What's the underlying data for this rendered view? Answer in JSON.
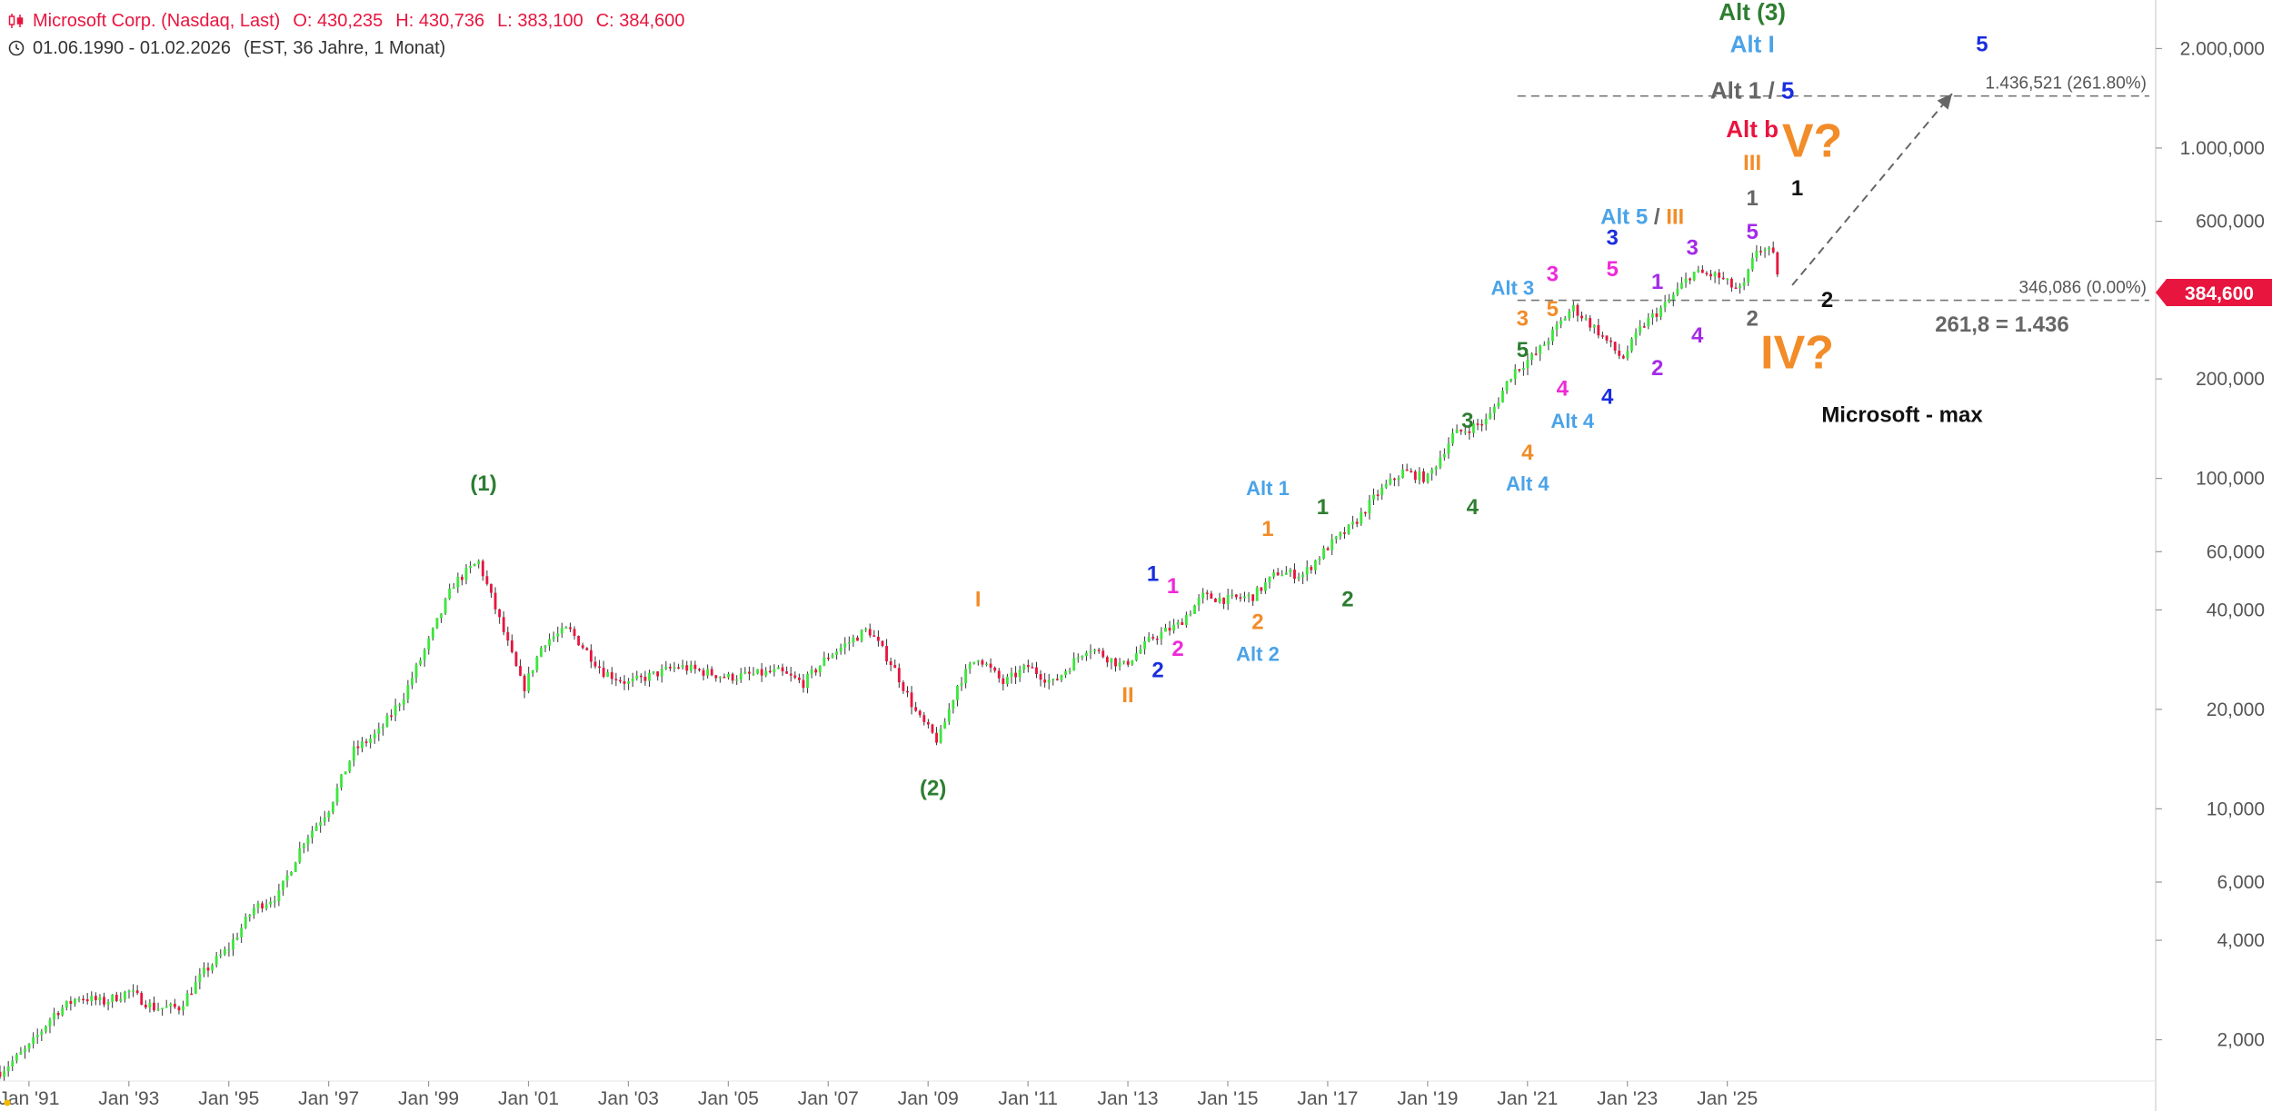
{
  "header": {
    "title": "Microsoft Corp. (Nasdaq, Last)",
    "open": "O: 430,235",
    "high": "H: 430,736",
    "low": "L: 383,100",
    "close": "C: 384,600",
    "range": "01.06.1990 - 01.02.2026",
    "range_detail": "(EST, 36 Jahre, 1 Monat)"
  },
  "price_tag": "384,600",
  "colors": {
    "up": "#3ee63e",
    "down": "#e8153f",
    "green": "#2e7d32",
    "blue": "#1a2ee0",
    "lightblue": "#4aa3e8",
    "orange": "#f28c28",
    "magenta": "#ee2ad8",
    "purple": "#a52ae8",
    "black": "#111111",
    "gray": "#666666",
    "red": "#e8153f"
  },
  "chart_data": {
    "type": "candlestick",
    "scale": "log",
    "ylim": [
      1500,
      2600000
    ],
    "xlim": [
      1990.42,
      2026.08
    ],
    "x_ticks": [
      "Jan '91",
      "Jan '93",
      "Jan '95",
      "Jan '97",
      "Jan '99",
      "Jan '01",
      "Jan '03",
      "Jan '05",
      "Jan '07",
      "Jan '09",
      "Jan '11",
      "Jan '13",
      "Jan '15",
      "Jan '17",
      "Jan '19",
      "Jan '21",
      "Jan '23",
      "Jan '25"
    ],
    "x_tick_years": [
      1991,
      1993,
      1995,
      1997,
      1999,
      2001,
      2003,
      2005,
      2007,
      2009,
      2011,
      2013,
      2015,
      2017,
      2019,
      2021,
      2023,
      2025
    ],
    "y_ticks": [
      {
        "v": 2000,
        "label": "2,000"
      },
      {
        "v": 4000,
        "label": "4,000"
      },
      {
        "v": 6000,
        "label": "6,000"
      },
      {
        "v": 10000,
        "label": "10,000"
      },
      {
        "v": 20000,
        "label": "20,000"
      },
      {
        "v": 40000,
        "label": "40,000"
      },
      {
        "v": 60000,
        "label": "60,000"
      },
      {
        "v": 100000,
        "label": "100,000"
      },
      {
        "v": 200000,
        "label": "200,000"
      },
      {
        "v": 600000,
        "label": "600,000"
      },
      {
        "v": 1000000,
        "label": "1.000,000"
      },
      {
        "v": 2000000,
        "label": "2.000,000"
      }
    ],
    "path": [
      [
        1990.42,
        1600
      ],
      [
        1991.0,
        1900
      ],
      [
        1991.5,
        2400
      ],
      [
        1992.0,
        2700
      ],
      [
        1992.5,
        2600
      ],
      [
        1993.0,
        2800
      ],
      [
        1993.5,
        2500
      ],
      [
        1994.0,
        2500
      ],
      [
        1994.5,
        3200
      ],
      [
        1995.0,
        3800
      ],
      [
        1995.5,
        5000
      ],
      [
        1996.0,
        5500
      ],
      [
        1996.5,
        8000
      ],
      [
        1997.0,
        10000
      ],
      [
        1997.5,
        15000
      ],
      [
        1998.0,
        17000
      ],
      [
        1998.5,
        22000
      ],
      [
        1999.0,
        32000
      ],
      [
        1999.5,
        48000
      ],
      [
        2000.0,
        56000
      ],
      [
        2000.4,
        38000
      ],
      [
        2000.9,
        23000
      ],
      [
        2001.3,
        32000
      ],
      [
        2001.8,
        35000
      ],
      [
        2002.5,
        26000
      ],
      [
        2003.0,
        24000
      ],
      [
        2004.0,
        27000
      ],
      [
        2005.0,
        25000
      ],
      [
        2006.0,
        26000
      ],
      [
        2006.5,
        24000
      ],
      [
        2007.0,
        29000
      ],
      [
        2007.8,
        35000
      ],
      [
        2008.3,
        27000
      ],
      [
        2008.8,
        19000
      ],
      [
        2009.2,
        16000
      ],
      [
        2009.6,
        24000
      ],
      [
        2010.0,
        29000
      ],
      [
        2010.5,
        24000
      ],
      [
        2011.0,
        27000
      ],
      [
        2011.5,
        24000
      ],
      [
        2012.2,
        31000
      ],
      [
        2012.9,
        27000
      ],
      [
        2013.5,
        33000
      ],
      [
        2014.0,
        36000
      ],
      [
        2014.5,
        44000
      ],
      [
        2015.0,
        43000
      ],
      [
        2015.5,
        44000
      ],
      [
        2016.0,
        52000
      ],
      [
        2016.5,
        51000
      ],
      [
        2017.0,
        62000
      ],
      [
        2017.5,
        72000
      ],
      [
        2018.0,
        90000
      ],
      [
        2018.5,
        105000
      ],
      [
        2019.0,
        100000
      ],
      [
        2019.5,
        135000
      ],
      [
        2020.2,
        150000
      ],
      [
        2020.7,
        210000
      ],
      [
        2021.2,
        240000
      ],
      [
        2021.9,
        330000
      ],
      [
        2022.4,
        280000
      ],
      [
        2022.9,
        230000
      ],
      [
        2023.3,
        290000
      ],
      [
        2023.8,
        340000
      ],
      [
        2024.3,
        420000
      ],
      [
        2024.8,
        410000
      ],
      [
        2025.1,
        380000
      ],
      [
        2025.3,
        370000
      ],
      [
        2025.6,
        500000
      ],
      [
        2025.9,
        480000
      ],
      [
        2026.08,
        384600
      ]
    ],
    "ref_lines": [
      {
        "value": 1436521,
        "label": "1.436,521 (261.80%)"
      },
      {
        "value": 346086,
        "label": "346,086 (0.00%)"
      }
    ],
    "annotations": [
      {
        "text": "(1)",
        "x": 2000.1,
        "y": 92000,
        "color": "green",
        "size": 24
      },
      {
        "text": "(2)",
        "x": 2009.1,
        "y": 11000,
        "color": "green",
        "size": 24
      },
      {
        "text": "I",
        "x": 2010.0,
        "y": 41000,
        "color": "orange",
        "size": 24
      },
      {
        "text": "II",
        "x": 2013.0,
        "y": 21000,
        "color": "orange",
        "size": 24
      },
      {
        "text": "1",
        "x": 2013.5,
        "y": 49000,
        "color": "blue",
        "size": 24
      },
      {
        "text": "2",
        "x": 2013.6,
        "y": 25000,
        "color": "blue",
        "size": 24
      },
      {
        "text": "1",
        "x": 2013.9,
        "y": 45000,
        "color": "magenta",
        "size": 24
      },
      {
        "text": "2",
        "x": 2014.0,
        "y": 29000,
        "color": "magenta",
        "size": 24
      },
      {
        "text": "Alt 1",
        "x": 2015.8,
        "y": 89000,
        "color": "lightblue",
        "size": 22
      },
      {
        "text": "1",
        "x": 2015.8,
        "y": 67000,
        "color": "orange",
        "size": 24
      },
      {
        "text": "2",
        "x": 2015.6,
        "y": 35000,
        "color": "orange",
        "size": 24
      },
      {
        "text": "Alt 2",
        "x": 2015.6,
        "y": 28000,
        "color": "lightblue",
        "size": 22
      },
      {
        "text": "1",
        "x": 2016.9,
        "y": 78000,
        "color": "green",
        "size": 24
      },
      {
        "text": "2",
        "x": 2017.4,
        "y": 41000,
        "color": "green",
        "size": 24
      },
      {
        "text": "3",
        "x": 2019.8,
        "y": 142000,
        "color": "green",
        "size": 24
      },
      {
        "text": "4",
        "x": 2019.9,
        "y": 78000,
        "color": "green",
        "size": 24
      },
      {
        "text": "5",
        "x": 2020.9,
        "y": 233000,
        "color": "green",
        "size": 24
      },
      {
        "text": "3",
        "x": 2020.9,
        "y": 290000,
        "color": "orange",
        "size": 24
      },
      {
        "text": "4",
        "x": 2021.0,
        "y": 114000,
        "color": "orange",
        "size": 24
      },
      {
        "text": "Alt 4",
        "x": 2021.0,
        "y": 92000,
        "color": "lightblue",
        "size": 22
      },
      {
        "text": "Alt 3",
        "x": 2020.7,
        "y": 360000,
        "color": "lightblue",
        "size": 22
      },
      {
        "text": "5",
        "x": 2021.5,
        "y": 310000,
        "color": "orange",
        "size": 24
      },
      {
        "text": "3",
        "x": 2021.5,
        "y": 395000,
        "color": "magenta",
        "size": 24
      },
      {
        "text": "4",
        "x": 2021.7,
        "y": 178000,
        "color": "magenta",
        "size": 24
      },
      {
        "text": "Alt 4",
        "x": 2021.9,
        "y": 142000,
        "color": "lightblue",
        "size": 22
      },
      {
        "text": "5",
        "x": 2022.7,
        "y": 410000,
        "color": "magenta",
        "size": 24
      },
      {
        "text": "3",
        "x": 2022.7,
        "y": 510000,
        "color": "blue",
        "size": 24
      },
      {
        "text": "4",
        "x": 2022.6,
        "y": 168000,
        "color": "blue",
        "size": 24
      },
      {
        "text": "1",
        "x": 2023.6,
        "y": 375000,
        "color": "purple",
        "size": 24
      },
      {
        "text": "2",
        "x": 2023.6,
        "y": 205000,
        "color": "purple",
        "size": 24
      },
      {
        "text": "3",
        "x": 2024.3,
        "y": 475000,
        "color": "purple",
        "size": 24
      },
      {
        "text": "4",
        "x": 2024.4,
        "y": 258000,
        "color": "purple",
        "size": 24
      },
      {
        "text": "5",
        "x": 2025.5,
        "y": 530000,
        "color": "purple",
        "size": 24
      },
      {
        "text": "1",
        "x": 2025.5,
        "y": 670000,
        "color": "gray",
        "size": 24
      },
      {
        "text": "2",
        "x": 2025.5,
        "y": 290000,
        "color": "gray",
        "size": 24
      },
      {
        "text": "III",
        "x": 2025.5,
        "y": 860000,
        "color": "orange",
        "size": 24
      },
      {
        "text": "Alt b",
        "x": 2025.5,
        "y": 1080000,
        "color": "red",
        "size": 26
      },
      {
        "text": "Alt I",
        "x": 2025.5,
        "y": 1950000,
        "color": "lightblue",
        "size": 26
      },
      {
        "text": "Alt (3)",
        "x": 2025.5,
        "y": 2440000,
        "color": "green",
        "size": 26
      },
      {
        "text": "1",
        "x": 2026.4,
        "y": 720000,
        "color": "black",
        "size": 24
      },
      {
        "text": "2",
        "x": 2027.0,
        "y": 330000,
        "color": "black",
        "size": 24
      },
      {
        "text": "V?",
        "x": 2026.7,
        "y": 940000,
        "color": "orange",
        "size": 52
      },
      {
        "text": "IV?",
        "x": 2026.4,
        "y": 215000,
        "color": "orange",
        "size": 52
      },
      {
        "text": "5",
        "x": 2030.1,
        "y": 1960000,
        "color": "blue",
        "size": 24
      },
      {
        "text": "Microsoft - max",
        "x": 2028.5,
        "y": 148000,
        "color": "black",
        "size": 24
      },
      {
        "text": "261,8 = 1.436",
        "x": 2030.5,
        "y": 278000,
        "color": "gray",
        "size": 24
      }
    ],
    "compound": [
      {
        "x": 2025.5,
        "y": 1410000,
        "parts": [
          {
            "text": "Alt 1 / ",
            "color": "gray"
          },
          {
            "text": "5",
            "color": "blue"
          }
        ],
        "size": 26
      },
      {
        "x": 2023.3,
        "y": 590000,
        "parts": [
          {
            "text": "Alt 5",
            "color": "lightblue"
          },
          {
            "text": " / ",
            "color": "gray"
          },
          {
            "text": "III",
            "color": "orange"
          }
        ],
        "size": 24
      }
    ],
    "projection": {
      "from": [
        2026.3,
        384600
      ],
      "to": [
        2029.5,
        1460000
      ]
    }
  }
}
